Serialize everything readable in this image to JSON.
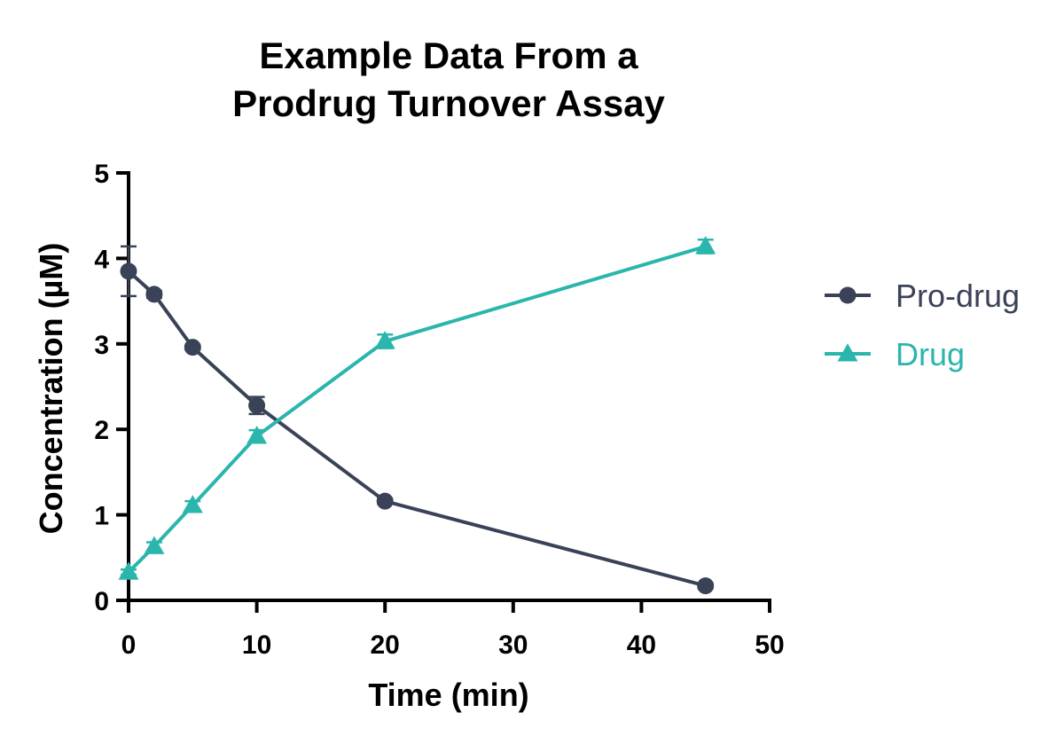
{
  "chart_data": {
    "type": "line",
    "title": [
      "Example Data From a",
      "Prodrug Turnover Assay"
    ],
    "xlabel": "Time (min)",
    "ylabel": "Concentration (µM)",
    "xlim": [
      0,
      50
    ],
    "ylim": [
      0,
      5
    ],
    "xticks": [
      0,
      10,
      20,
      30,
      40,
      50
    ],
    "yticks": [
      0,
      1,
      2,
      3,
      4,
      5
    ],
    "grid": false,
    "legend_position": "right",
    "series": [
      {
        "name": "Pro-drug",
        "color": "#3a4257",
        "marker": "circle",
        "x": [
          0,
          2,
          5,
          10,
          20,
          45
        ],
        "y": [
          3.85,
          3.58,
          2.96,
          2.28,
          1.16,
          0.17
        ],
        "error": [
          0.29,
          0.04,
          0.03,
          0.1,
          0.03,
          0.03
        ]
      },
      {
        "name": "Drug",
        "color": "#2ab5ad",
        "marker": "triangle",
        "x": [
          0,
          2,
          5,
          10,
          20,
          45
        ],
        "y": [
          0.33,
          0.63,
          1.11,
          1.92,
          3.03,
          4.14
        ],
        "error": [
          0.03,
          0.05,
          0.05,
          0.07,
          0.08,
          0.08
        ]
      }
    ]
  }
}
